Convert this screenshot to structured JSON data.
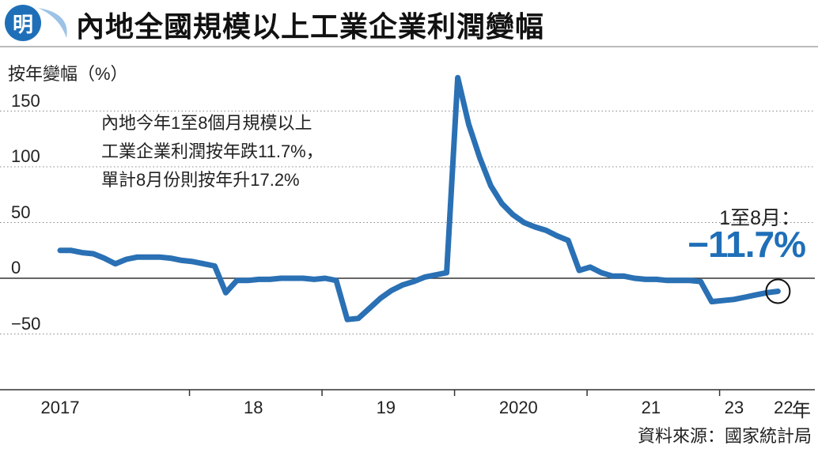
{
  "header": {
    "logo_text": "明",
    "title": "內地全國規模以上工業企業利潤變幅",
    "brand_color": "#1f6fb8"
  },
  "annotation": {
    "lines": [
      "內地今年1至8個月規模以上",
      "工業企業利潤按年跌11.7%，",
      "單計8月份則按年升17.2%"
    ]
  },
  "callout": {
    "period": "1至8月：",
    "value": "−11.7%",
    "color": "#1f6fb8"
  },
  "source": "資料來源：國家統計局",
  "chart_data": {
    "type": "line",
    "title": "內地全國規模以上工業企業利潤變幅",
    "ylabel": "按年變幅（%）",
    "xlabel": "年",
    "ylim": [
      -100,
      160
    ],
    "yticks": [
      150,
      100,
      50,
      0,
      -50
    ],
    "grid": "horizontal dotted",
    "x_tick_labels": [
      "2017",
      "18",
      "19",
      "2020",
      "21",
      "22",
      "23"
    ],
    "x_unit": "年",
    "line_color": "#2a70b4",
    "series": [
      {
        "values": [
          25,
          25,
          23,
          22,
          18,
          13,
          17,
          19,
          19,
          19,
          18,
          16,
          15,
          13,
          11,
          -13,
          -2,
          -2,
          -1,
          -1,
          0,
          0,
          0,
          -1,
          0,
          -2,
          -37,
          -36,
          -27,
          -18,
          -11,
          -6,
          -3,
          1,
          3,
          5,
          180,
          138,
          108,
          83,
          67,
          57,
          50,
          46,
          43,
          38,
          34,
          7,
          10,
          5,
          2,
          2,
          0,
          -1,
          -1,
          -2,
          -2,
          -2,
          -3,
          -21,
          -20,
          -19,
          -17,
          -15,
          -13,
          -11.7
        ]
      }
    ],
    "highlight": {
      "index": 65,
      "value": -11.7
    }
  }
}
